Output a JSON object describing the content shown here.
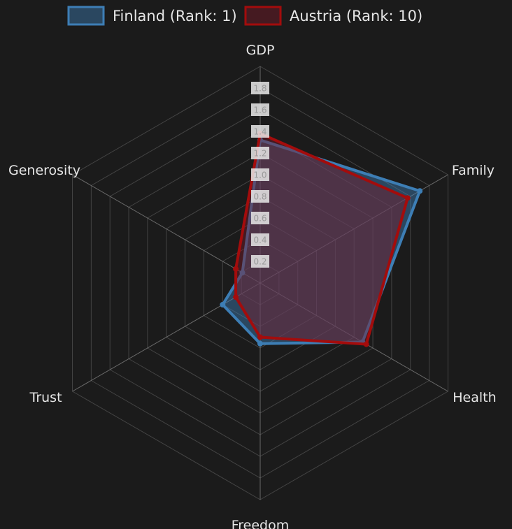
{
  "chart_data": {
    "type": "radar",
    "axes": [
      "GDP",
      "Family",
      "Health",
      "Freedom",
      "Trust",
      "Generosity"
    ],
    "rlim": [
      0,
      2.0
    ],
    "ticks": [
      "0.2",
      "0.4",
      "0.6",
      "0.8",
      "1.0",
      "1.2",
      "1.4",
      "1.6",
      "1.8"
    ],
    "grid": true,
    "legend_position": "top",
    "series": [
      {
        "name": "Finland (Rank: 1)",
        "color": "#3d7eb5",
        "fill": "#3d7eb5",
        "values": [
          1.32,
          1.7,
          1.09,
          0.56,
          0.4,
          0.19
        ]
      },
      {
        "name": "Austria (Rank: 10)",
        "color": "#a30c0c",
        "fill": "#7a1a2a",
        "values": [
          1.38,
          1.57,
          1.13,
          0.5,
          0.26,
          0.26
        ]
      }
    ]
  }
}
